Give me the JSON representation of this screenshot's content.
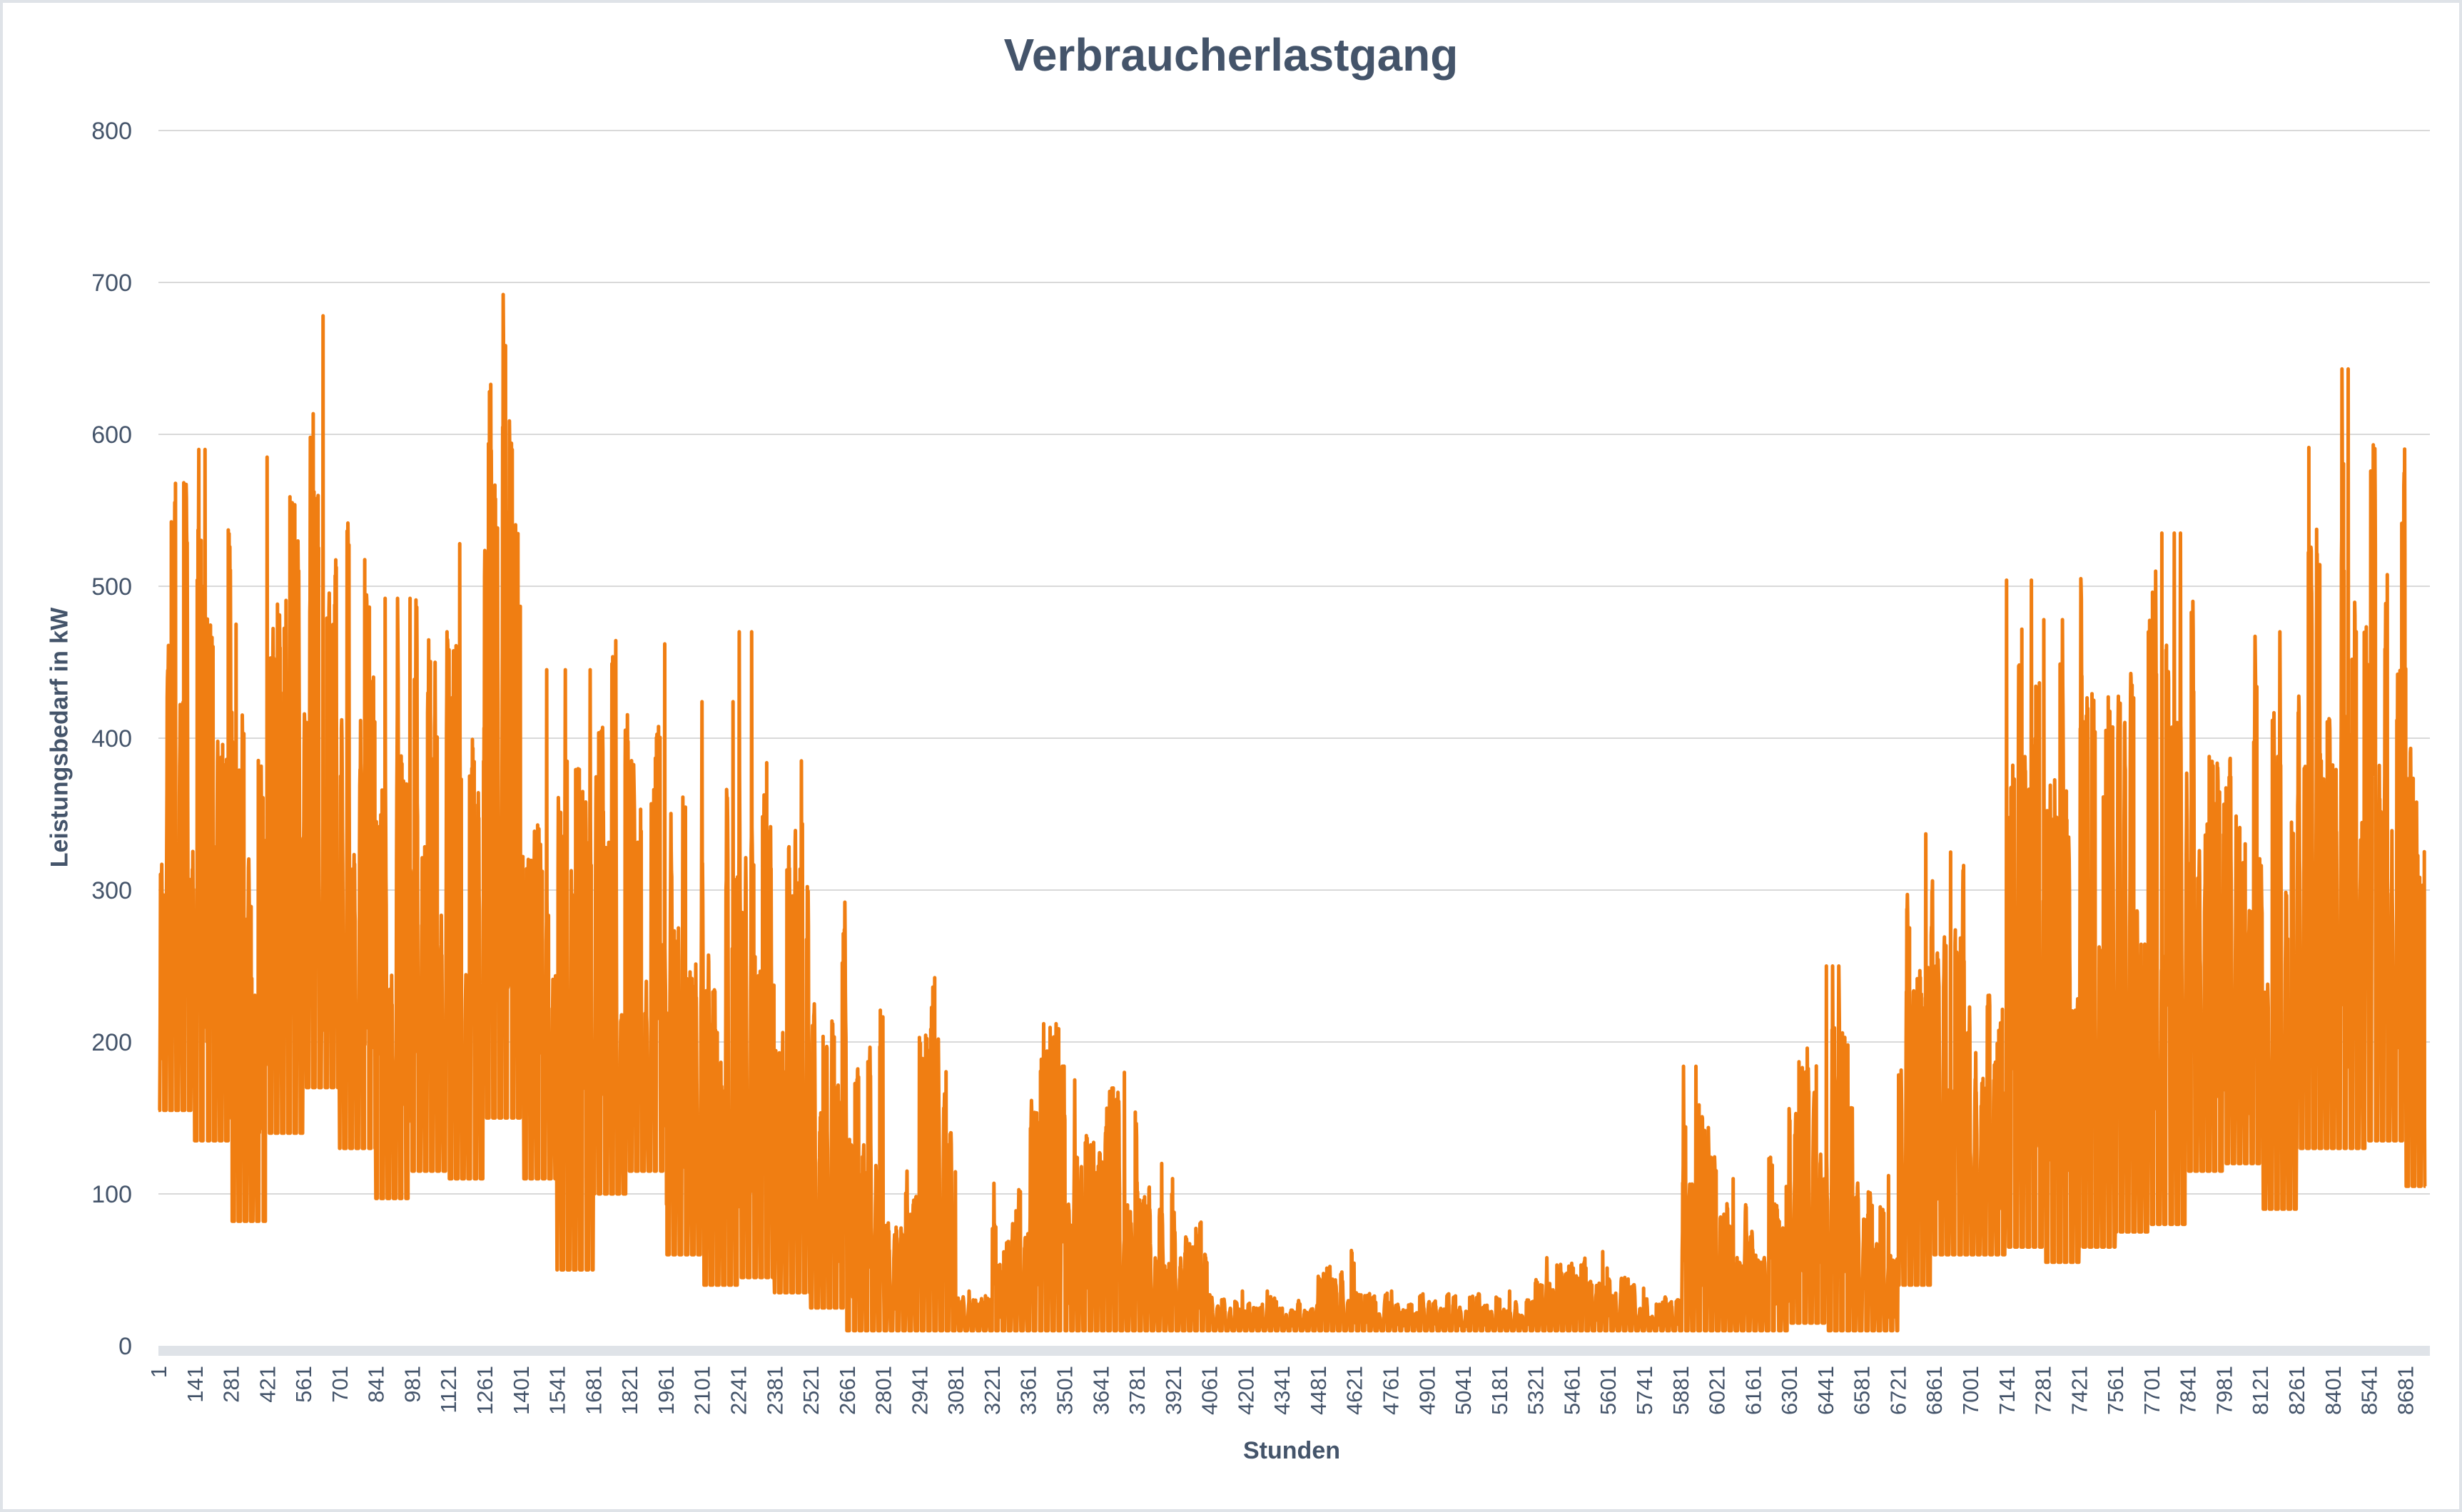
{
  "chart_data": {
    "type": "line",
    "title": "Verbraucherlastgang",
    "xlabel": "Stunden",
    "ylabel": "Leistungsbedarf in kW",
    "ylim": [
      0,
      800
    ],
    "yticks": [
      0,
      100,
      200,
      300,
      400,
      500,
      600,
      700,
      800
    ],
    "xlim": [
      1,
      8760
    ],
    "grid": true,
    "color": "#F07E12",
    "series_note": "hourly load; envelope (max/min kW) per 140-hour bin starting at hour 1",
    "bin_hours": 140,
    "series": [
      {
        "name": "Leistungsbedarf",
        "bin_max": [
          628,
          590,
          475,
          585,
          678,
          556,
          492,
          548,
          528,
          692,
          445,
          445,
          485,
          462,
          440,
          424,
          470,
          385,
          292,
          280,
          115,
          298,
          36,
          107,
          212,
          175,
          180,
          120,
          93,
          36,
          36,
          36,
          66,
          36,
          36,
          36,
          36,
          36,
          58,
          62,
          46,
          36,
          184,
          110,
          137,
          200,
          250,
          112,
          337,
          325,
          240,
          504,
          478,
          547,
          497,
          535,
          490,
          467,
          470,
          602,
          643,
          662,
          522
        ],
        "bin_min": [
          155,
          135,
          82,
          140,
          170,
          130,
          97,
          115,
          110,
          150,
          110,
          50,
          100,
          115,
          60,
          40,
          45,
          35,
          25,
          10,
          10,
          10,
          10,
          10,
          10,
          10,
          10,
          10,
          10,
          10,
          10,
          10,
          10,
          10,
          10,
          10,
          10,
          10,
          10,
          10,
          10,
          10,
          10,
          10,
          10,
          15,
          10,
          10,
          40,
          60,
          60,
          65,
          55,
          65,
          75,
          80,
          115,
          120,
          90,
          130,
          130,
          135,
          105
        ]
      }
    ],
    "xtick_labels": [
      "1",
      "141",
      "281",
      "421",
      "561",
      "701",
      "841",
      "981",
      "1121",
      "1261",
      "1401",
      "1541",
      "1681",
      "1821",
      "1961",
      "2101",
      "2241",
      "2381",
      "2521",
      "2661",
      "2801",
      "2941",
      "3081",
      "3221",
      "3361",
      "3501",
      "3641",
      "3781",
      "3921",
      "4061",
      "4201",
      "4341",
      "4481",
      "4621",
      "4761",
      "4901",
      "5041",
      "5181",
      "5321",
      "5461",
      "5601",
      "5741",
      "5881",
      "6021",
      "6161",
      "6301",
      "6441",
      "6581",
      "6721",
      "6861",
      "7001",
      "7141",
      "7281",
      "7421",
      "7561",
      "7701",
      "7841",
      "7981",
      "8121",
      "8261",
      "8401",
      "8541",
      "8681"
    ]
  }
}
